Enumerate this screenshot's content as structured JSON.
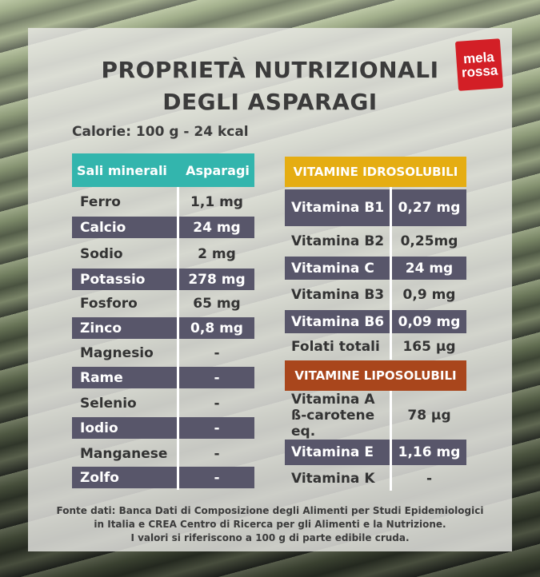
{
  "title_line1": "PROPRIETÀ NUTRIZIONALI",
  "title_line2": "DEGLI ASPARAGI",
  "logo_line1": "mela",
  "logo_line2": "rossa",
  "calorie": "Calorie: 100 g - 24 kcal",
  "minerals": {
    "header_name": "Sali minerali",
    "header_value": "Asparagi",
    "rows": [
      {
        "name": "Ferro",
        "value": "1,1 mg"
      },
      {
        "name": "Calcio",
        "value": "24 mg"
      },
      {
        "name": "Sodio",
        "value": "2 mg"
      },
      {
        "name": "Potassio",
        "value": "278 mg"
      },
      {
        "name": "Fosforo",
        "value": "65 mg"
      },
      {
        "name": "Zinco",
        "value": "0,8  mg"
      },
      {
        "name": "Magnesio",
        "value": "-"
      },
      {
        "name": "Rame",
        "value": "-"
      },
      {
        "name": "Selenio",
        "value": "-"
      },
      {
        "name": "Iodio",
        "value": "-"
      },
      {
        "name": "Manganese",
        "value": "-"
      },
      {
        "name": "Zolfo",
        "value": "-"
      }
    ]
  },
  "water_vitamins": {
    "header": "VITAMINE IDROSOLUBILI",
    "rows": [
      {
        "name": "Vitamina B1",
        "value": "0,27 mg"
      },
      {
        "name": "Vitamina B2",
        "value": "0,25mg"
      },
      {
        "name": "Vitamina C",
        "value": "24 mg"
      },
      {
        "name": "Vitamina B3",
        "value": "0,9 mg"
      },
      {
        "name": "Vitamina B6",
        "value": "0,09 mg"
      },
      {
        "name": "Folati totali",
        "value": "165 µg"
      }
    ]
  },
  "fat_vitamins": {
    "header": "VITAMINE LIPOSOLUBILI",
    "rows": [
      {
        "name": "Vitamina A",
        "name2": "ß-carotene eq.",
        "value": "78 µg"
      },
      {
        "name": "Vitamina E",
        "value": "1,16 mg"
      },
      {
        "name": "Vitamina K",
        "value": "-"
      }
    ]
  },
  "footer": {
    "line1": "Fonte dati: Banca Dati di Composizione degli Alimenti per Studi Epidemiologici",
    "line2": "in Italia e CREA Centro di Ricerca per gli Alimenti e la Nutrizione.",
    "line3": "I valori si riferiscono a 100 g di parte edibile cruda."
  }
}
